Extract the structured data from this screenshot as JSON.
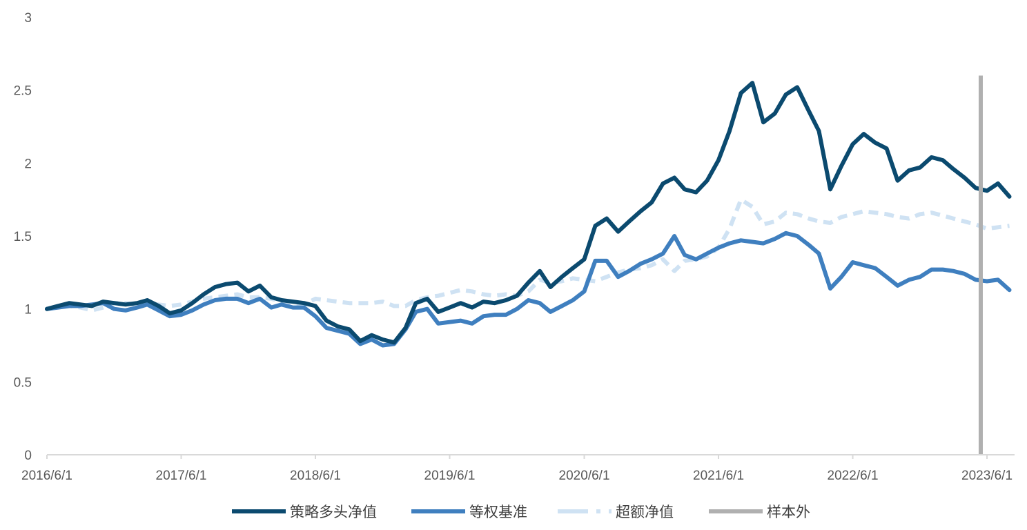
{
  "chart_data": {
    "type": "line",
    "title": "",
    "xlabel": "",
    "ylabel": "",
    "x_ticks": [
      "2016/6/1",
      "2017/6/1",
      "2018/6/1",
      "2019/6/1",
      "2020/6/1",
      "2021/6/1",
      "2022/6/1",
      "2023/6/1"
    ],
    "y_ticks": [
      0,
      0.5,
      1,
      1.5,
      2,
      2.5,
      3
    ],
    "ylim": [
      0,
      3
    ],
    "xlim": [
      "2016/6/1",
      "2023/8/15"
    ],
    "grid": false,
    "legend_position": "bottom",
    "out_of_sample_start": "2023/5/15",
    "series": [
      {
        "name": "策略多头净值",
        "color": "#0b4a6f",
        "style": "solid",
        "points": [
          [
            "2016/6/1",
            1.0
          ],
          [
            "2016/7/1",
            1.02
          ],
          [
            "2016/8/1",
            1.04
          ],
          [
            "2016/9/1",
            1.03
          ],
          [
            "2016/10/1",
            1.02
          ],
          [
            "2016/11/1",
            1.05
          ],
          [
            "2016/12/1",
            1.04
          ],
          [
            "2017/1/1",
            1.03
          ],
          [
            "2017/2/1",
            1.04
          ],
          [
            "2017/3/1",
            1.06
          ],
          [
            "2017/4/1",
            1.02
          ],
          [
            "2017/5/1",
            0.97
          ],
          [
            "2017/6/1",
            0.99
          ],
          [
            "2017/7/1",
            1.04
          ],
          [
            "2017/8/1",
            1.1
          ],
          [
            "2017/9/1",
            1.15
          ],
          [
            "2017/10/1",
            1.17
          ],
          [
            "2017/11/1",
            1.18
          ],
          [
            "2017/12/1",
            1.12
          ],
          [
            "2018/1/1",
            1.16
          ],
          [
            "2018/2/1",
            1.08
          ],
          [
            "2018/3/1",
            1.06
          ],
          [
            "2018/4/1",
            1.05
          ],
          [
            "2018/5/1",
            1.04
          ],
          [
            "2018/6/1",
            1.02
          ],
          [
            "2018/7/1",
            0.92
          ],
          [
            "2018/8/1",
            0.88
          ],
          [
            "2018/9/1",
            0.86
          ],
          [
            "2018/10/1",
            0.78
          ],
          [
            "2018/11/1",
            0.82
          ],
          [
            "2018/12/1",
            0.79
          ],
          [
            "2019/1/1",
            0.77
          ],
          [
            "2019/2/1",
            0.87
          ],
          [
            "2019/3/1",
            1.04
          ],
          [
            "2019/4/1",
            1.07
          ],
          [
            "2019/5/1",
            0.98
          ],
          [
            "2019/6/1",
            1.01
          ],
          [
            "2019/7/1",
            1.04
          ],
          [
            "2019/8/1",
            1.01
          ],
          [
            "2019/9/1",
            1.05
          ],
          [
            "2019/10/1",
            1.04
          ],
          [
            "2019/11/1",
            1.06
          ],
          [
            "2019/12/1",
            1.09
          ],
          [
            "2020/1/1",
            1.18
          ],
          [
            "2020/2/1",
            1.26
          ],
          [
            "2020/3/1",
            1.15
          ],
          [
            "2020/4/1",
            1.22
          ],
          [
            "2020/5/1",
            1.28
          ],
          [
            "2020/6/1",
            1.34
          ],
          [
            "2020/7/1",
            1.57
          ],
          [
            "2020/8/1",
            1.62
          ],
          [
            "2020/9/1",
            1.53
          ],
          [
            "2020/10/1",
            1.6
          ],
          [
            "2020/11/1",
            1.67
          ],
          [
            "2020/12/1",
            1.73
          ],
          [
            "2021/1/1",
            1.86
          ],
          [
            "2021/2/1",
            1.9
          ],
          [
            "2021/3/1",
            1.82
          ],
          [
            "2021/4/1",
            1.8
          ],
          [
            "2021/5/1",
            1.88
          ],
          [
            "2021/6/1",
            2.02
          ],
          [
            "2021/7/1",
            2.22
          ],
          [
            "2021/8/1",
            2.48
          ],
          [
            "2021/9/1",
            2.55
          ],
          [
            "2021/10/1",
            2.28
          ],
          [
            "2021/11/1",
            2.34
          ],
          [
            "2021/12/1",
            2.47
          ],
          [
            "2022/1/1",
            2.52
          ],
          [
            "2022/2/1",
            2.36
          ],
          [
            "2022/3/1",
            2.22
          ],
          [
            "2022/4/1",
            1.82
          ],
          [
            "2022/5/1",
            1.98
          ],
          [
            "2022/6/1",
            2.13
          ],
          [
            "2022/7/1",
            2.2
          ],
          [
            "2022/8/1",
            2.14
          ],
          [
            "2022/9/1",
            2.1
          ],
          [
            "2022/10/1",
            1.88
          ],
          [
            "2022/11/1",
            1.95
          ],
          [
            "2022/12/1",
            1.97
          ],
          [
            "2023/1/1",
            2.04
          ],
          [
            "2023/2/1",
            2.02
          ],
          [
            "2023/3/1",
            1.96
          ],
          [
            "2023/4/1",
            1.9
          ],
          [
            "2023/5/1",
            1.83
          ],
          [
            "2023/6/1",
            1.81
          ],
          [
            "2023/7/1",
            1.86
          ],
          [
            "2023/8/1",
            1.77
          ]
        ]
      },
      {
        "name": "等权基准",
        "color": "#3f7fbf",
        "style": "solid",
        "points": [
          [
            "2016/6/1",
            1.0
          ],
          [
            "2016/7/1",
            1.01
          ],
          [
            "2016/8/1",
            1.02
          ],
          [
            "2016/9/1",
            1.02
          ],
          [
            "2016/10/1",
            1.03
          ],
          [
            "2016/11/1",
            1.04
          ],
          [
            "2016/12/1",
            1.0
          ],
          [
            "2017/1/1",
            0.99
          ],
          [
            "2017/2/1",
            1.01
          ],
          [
            "2017/3/1",
            1.03
          ],
          [
            "2017/4/1",
            0.99
          ],
          [
            "2017/5/1",
            0.95
          ],
          [
            "2017/6/1",
            0.96
          ],
          [
            "2017/7/1",
            0.99
          ],
          [
            "2017/8/1",
            1.03
          ],
          [
            "2017/9/1",
            1.06
          ],
          [
            "2017/10/1",
            1.07
          ],
          [
            "2017/11/1",
            1.07
          ],
          [
            "2017/12/1",
            1.04
          ],
          [
            "2018/1/1",
            1.07
          ],
          [
            "2018/2/1",
            1.01
          ],
          [
            "2018/3/1",
            1.03
          ],
          [
            "2018/4/1",
            1.01
          ],
          [
            "2018/5/1",
            1.01
          ],
          [
            "2018/6/1",
            0.95
          ],
          [
            "2018/7/1",
            0.87
          ],
          [
            "2018/8/1",
            0.85
          ],
          [
            "2018/9/1",
            0.83
          ],
          [
            "2018/10/1",
            0.76
          ],
          [
            "2018/11/1",
            0.79
          ],
          [
            "2018/12/1",
            0.75
          ],
          [
            "2019/1/1",
            0.76
          ],
          [
            "2019/2/1",
            0.86
          ],
          [
            "2019/3/1",
            0.98
          ],
          [
            "2019/4/1",
            1.0
          ],
          [
            "2019/5/1",
            0.9
          ],
          [
            "2019/6/1",
            0.91
          ],
          [
            "2019/7/1",
            0.92
          ],
          [
            "2019/8/1",
            0.9
          ],
          [
            "2019/9/1",
            0.95
          ],
          [
            "2019/10/1",
            0.96
          ],
          [
            "2019/11/1",
            0.96
          ],
          [
            "2019/12/1",
            1.0
          ],
          [
            "2020/1/1",
            1.06
          ],
          [
            "2020/2/1",
            1.04
          ],
          [
            "2020/3/1",
            0.98
          ],
          [
            "2020/4/1",
            1.02
          ],
          [
            "2020/5/1",
            1.06
          ],
          [
            "2020/6/1",
            1.12
          ],
          [
            "2020/7/1",
            1.33
          ],
          [
            "2020/8/1",
            1.33
          ],
          [
            "2020/9/1",
            1.22
          ],
          [
            "2020/10/1",
            1.26
          ],
          [
            "2020/11/1",
            1.31
          ],
          [
            "2020/12/1",
            1.34
          ],
          [
            "2021/1/1",
            1.38
          ],
          [
            "2021/2/1",
            1.5
          ],
          [
            "2021/3/1",
            1.37
          ],
          [
            "2021/4/1",
            1.34
          ],
          [
            "2021/5/1",
            1.38
          ],
          [
            "2021/6/1",
            1.42
          ],
          [
            "2021/7/1",
            1.45
          ],
          [
            "2021/8/1",
            1.47
          ],
          [
            "2021/9/1",
            1.46
          ],
          [
            "2021/10/1",
            1.45
          ],
          [
            "2021/11/1",
            1.48
          ],
          [
            "2021/12/1",
            1.52
          ],
          [
            "2022/1/1",
            1.5
          ],
          [
            "2022/2/1",
            1.44
          ],
          [
            "2022/3/1",
            1.38
          ],
          [
            "2022/4/1",
            1.14
          ],
          [
            "2022/5/1",
            1.22
          ],
          [
            "2022/6/1",
            1.32
          ],
          [
            "2022/7/1",
            1.3
          ],
          [
            "2022/8/1",
            1.28
          ],
          [
            "2022/9/1",
            1.22
          ],
          [
            "2022/10/1",
            1.16
          ],
          [
            "2022/11/1",
            1.2
          ],
          [
            "2022/12/1",
            1.22
          ],
          [
            "2023/1/1",
            1.27
          ],
          [
            "2023/2/1",
            1.27
          ],
          [
            "2023/3/1",
            1.26
          ],
          [
            "2023/4/1",
            1.24
          ],
          [
            "2023/5/1",
            1.2
          ],
          [
            "2023/6/1",
            1.19
          ],
          [
            "2023/7/1",
            1.2
          ],
          [
            "2023/8/1",
            1.13
          ]
        ]
      },
      {
        "name": "超额净值",
        "color": "#cfe2f3",
        "style": "dashed",
        "points": [
          [
            "2016/6/1",
            1.0
          ],
          [
            "2016/7/1",
            1.01
          ],
          [
            "2016/8/1",
            1.02
          ],
          [
            "2016/9/1",
            1.01
          ],
          [
            "2016/10/1",
            0.99
          ],
          [
            "2016/11/1",
            1.01
          ],
          [
            "2016/12/1",
            1.04
          ],
          [
            "2017/1/1",
            1.04
          ],
          [
            "2017/2/1",
            1.03
          ],
          [
            "2017/3/1",
            1.03
          ],
          [
            "2017/4/1",
            1.03
          ],
          [
            "2017/5/1",
            1.02
          ],
          [
            "2017/6/1",
            1.03
          ],
          [
            "2017/7/1",
            1.05
          ],
          [
            "2017/8/1",
            1.07
          ],
          [
            "2017/9/1",
            1.08
          ],
          [
            "2017/10/1",
            1.09
          ],
          [
            "2017/11/1",
            1.1
          ],
          [
            "2017/12/1",
            1.08
          ],
          [
            "2018/1/1",
            1.08
          ],
          [
            "2018/2/1",
            1.07
          ],
          [
            "2018/3/1",
            1.05
          ],
          [
            "2018/4/1",
            1.04
          ],
          [
            "2018/5/1",
            1.03
          ],
          [
            "2018/6/1",
            1.07
          ],
          [
            "2018/7/1",
            1.06
          ],
          [
            "2018/8/1",
            1.05
          ],
          [
            "2018/9/1",
            1.04
          ],
          [
            "2018/10/1",
            1.04
          ],
          [
            "2018/11/1",
            1.04
          ],
          [
            "2018/12/1",
            1.05
          ],
          [
            "2019/1/1",
            1.02
          ],
          [
            "2019/2/1",
            1.02
          ],
          [
            "2019/3/1",
            1.06
          ],
          [
            "2019/4/1",
            1.08
          ],
          [
            "2019/5/1",
            1.09
          ],
          [
            "2019/6/1",
            1.11
          ],
          [
            "2019/7/1",
            1.13
          ],
          [
            "2019/8/1",
            1.12
          ],
          [
            "2019/9/1",
            1.1
          ],
          [
            "2019/10/1",
            1.09
          ],
          [
            "2019/11/1",
            1.1
          ],
          [
            "2019/12/1",
            1.09
          ],
          [
            "2020/1/1",
            1.12
          ],
          [
            "2020/2/1",
            1.2
          ],
          [
            "2020/3/1",
            1.18
          ],
          [
            "2020/4/1",
            1.19
          ],
          [
            "2020/5/1",
            1.21
          ],
          [
            "2020/6/1",
            1.2
          ],
          [
            "2020/7/1",
            1.19
          ],
          [
            "2020/8/1",
            1.22
          ],
          [
            "2020/9/1",
            1.25
          ],
          [
            "2020/10/1",
            1.27
          ],
          [
            "2020/11/1",
            1.28
          ],
          [
            "2020/12/1",
            1.3
          ],
          [
            "2021/1/1",
            1.34
          ],
          [
            "2021/2/1",
            1.26
          ],
          [
            "2021/3/1",
            1.33
          ],
          [
            "2021/4/1",
            1.34
          ],
          [
            "2021/5/1",
            1.36
          ],
          [
            "2021/6/1",
            1.42
          ],
          [
            "2021/7/1",
            1.55
          ],
          [
            "2021/8/1",
            1.75
          ],
          [
            "2021/9/1",
            1.7
          ],
          [
            "2021/10/1",
            1.58
          ],
          [
            "2021/11/1",
            1.6
          ],
          [
            "2021/12/1",
            1.66
          ],
          [
            "2022/1/1",
            1.65
          ],
          [
            "2022/2/1",
            1.62
          ],
          [
            "2022/3/1",
            1.6
          ],
          [
            "2022/4/1",
            1.59
          ],
          [
            "2022/5/1",
            1.63
          ],
          [
            "2022/6/1",
            1.65
          ],
          [
            "2022/7/1",
            1.67
          ],
          [
            "2022/8/1",
            1.66
          ],
          [
            "2022/9/1",
            1.65
          ],
          [
            "2022/10/1",
            1.63
          ],
          [
            "2022/11/1",
            1.62
          ],
          [
            "2022/12/1",
            1.65
          ],
          [
            "2023/1/1",
            1.66
          ],
          [
            "2023/2/1",
            1.64
          ],
          [
            "2023/3/1",
            1.62
          ],
          [
            "2023/4/1",
            1.6
          ],
          [
            "2023/5/1",
            1.58
          ],
          [
            "2023/6/1",
            1.55
          ],
          [
            "2023/7/1",
            1.56
          ],
          [
            "2023/8/1",
            1.57
          ]
        ]
      },
      {
        "name": "样本外",
        "color": "#b0b0b0",
        "style": "vertical-line",
        "points": [
          [
            "2023/5/15",
            0
          ],
          [
            "2023/5/15",
            2.6
          ]
        ]
      }
    ]
  }
}
